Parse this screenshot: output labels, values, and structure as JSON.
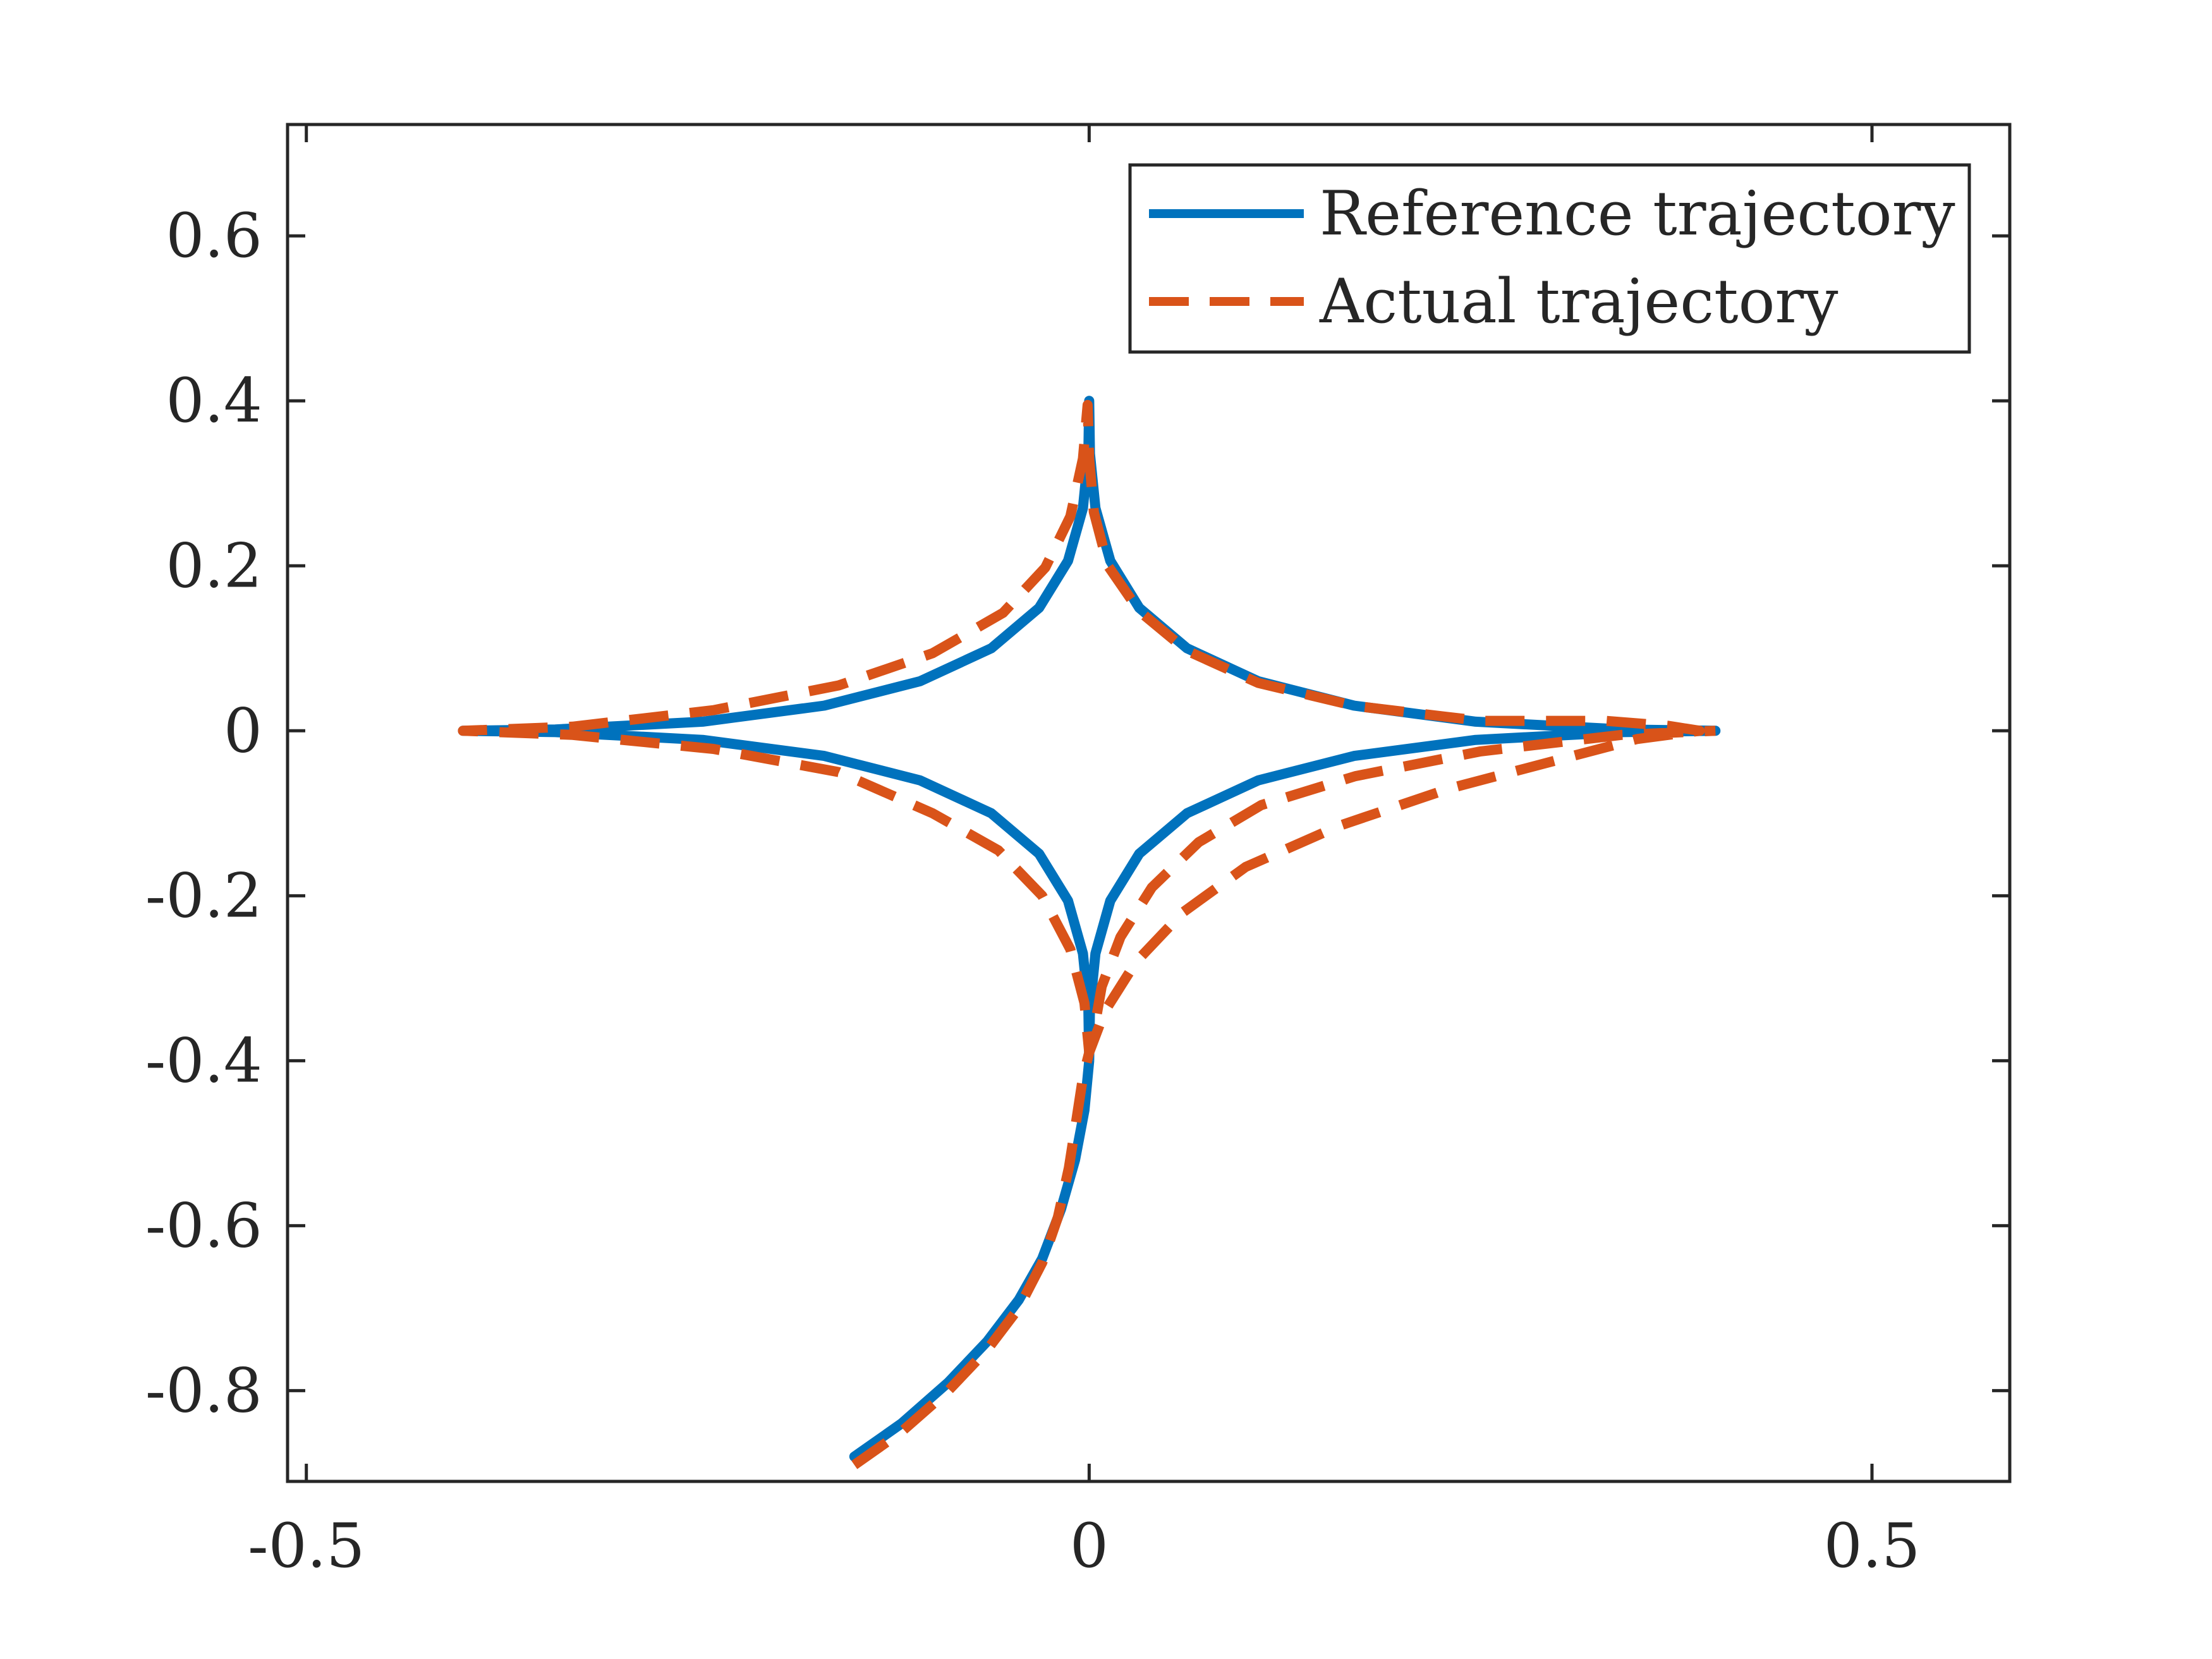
{
  "chart_data": {
    "type": "line",
    "title": "",
    "xlabel": "",
    "ylabel": "",
    "xlim": [
      -0.512,
      0.588
    ],
    "ylim": [
      -0.91,
      0.735
    ],
    "x_ticks": [
      -0.5,
      0,
      0.5
    ],
    "x_tick_labels": [
      "-0.5",
      "0",
      "0.5"
    ],
    "y_ticks": [
      -0.8,
      -0.6,
      -0.4,
      -0.2,
      0,
      0.2,
      0.4,
      0.6
    ],
    "y_tick_labels": [
      "-0.8",
      "-0.6",
      "-0.4",
      "-0.2",
      "0",
      "0.2",
      "0.4",
      "0.6"
    ],
    "grid": false,
    "legend_position": "top-right",
    "series": [
      {
        "name": "Reference trajectory",
        "color": "#0072BD",
        "style": "solid",
        "points": [
          [
            -0.15,
            -0.88
          ],
          [
            -0.12,
            -0.84
          ],
          [
            -0.09,
            -0.79
          ],
          [
            -0.065,
            -0.74
          ],
          [
            -0.045,
            -0.69
          ],
          [
            -0.03,
            -0.64
          ],
          [
            -0.018,
            -0.58
          ],
          [
            -0.009,
            -0.52
          ],
          [
            -0.003,
            -0.46
          ],
          [
            0.0,
            -0.4
          ],
          [
            0.0005,
            -0.336
          ],
          [
            0.004,
            -0.27
          ],
          [
            0.0135,
            -0.206
          ],
          [
            0.032,
            -0.149
          ],
          [
            0.0625,
            -0.1
          ],
          [
            0.108,
            -0.0601
          ],
          [
            0.1692,
            -0.0305
          ],
          [
            0.2469,
            -0.011
          ],
          [
            0.341,
            -0.0016
          ],
          [
            0.4,
            0.0
          ],
          [
            0.341,
            0.0016
          ],
          [
            0.2469,
            0.011
          ],
          [
            0.1692,
            0.0305
          ],
          [
            0.108,
            0.0601
          ],
          [
            0.0625,
            0.1
          ],
          [
            0.032,
            0.149
          ],
          [
            0.0135,
            0.206
          ],
          [
            0.004,
            0.27
          ],
          [
            0.0005,
            0.336
          ],
          [
            0.0,
            0.4
          ],
          [
            -0.0005,
            0.336
          ],
          [
            -0.004,
            0.27
          ],
          [
            -0.0135,
            0.206
          ],
          [
            -0.032,
            0.149
          ],
          [
            -0.0625,
            0.1
          ],
          [
            -0.108,
            0.0601
          ],
          [
            -0.1692,
            0.0305
          ],
          [
            -0.2469,
            0.011
          ],
          [
            -0.341,
            0.0016
          ],
          [
            -0.4,
            0.0
          ],
          [
            -0.341,
            -0.0016
          ],
          [
            -0.2469,
            -0.011
          ],
          [
            -0.1692,
            -0.0305
          ],
          [
            -0.108,
            -0.0601
          ],
          [
            -0.0625,
            -0.1
          ],
          [
            -0.032,
            -0.149
          ],
          [
            -0.0135,
            -0.206
          ],
          [
            -0.004,
            -0.27
          ],
          [
            -0.0005,
            -0.336
          ],
          [
            0.0,
            -0.4
          ],
          [
            0.0005,
            -0.336
          ],
          [
            0.004,
            -0.27
          ],
          [
            0.0135,
            -0.206
          ],
          [
            0.032,
            -0.149
          ],
          [
            0.0625,
            -0.1
          ],
          [
            0.108,
            -0.0601
          ],
          [
            0.1692,
            -0.0305
          ],
          [
            0.2469,
            -0.011
          ],
          [
            0.341,
            -0.0016
          ],
          [
            0.4,
            0.0
          ]
        ]
      },
      {
        "name": "Actual trajectory",
        "color": "#D95319",
        "style": "dashed",
        "points": [
          [
            -0.15,
            -0.89
          ],
          [
            -0.12,
            -0.85
          ],
          [
            -0.09,
            -0.8
          ],
          [
            -0.065,
            -0.75
          ],
          [
            -0.045,
            -0.7
          ],
          [
            -0.03,
            -0.645
          ],
          [
            -0.02,
            -0.59
          ],
          [
            -0.013,
            -0.53
          ],
          [
            -0.008,
            -0.47
          ],
          [
            -0.004,
            -0.42
          ],
          [
            0.0,
            -0.39
          ],
          [
            0.01,
            -0.34
          ],
          [
            0.03,
            -0.28
          ],
          [
            0.06,
            -0.22
          ],
          [
            0.1,
            -0.165
          ],
          [
            0.16,
            -0.115
          ],
          [
            0.23,
            -0.07
          ],
          [
            0.3,
            -0.035
          ],
          [
            0.35,
            -0.01
          ],
          [
            0.39,
            0.0
          ],
          [
            0.37,
            0.006
          ],
          [
            0.33,
            0.012
          ],
          [
            0.25,
            0.012
          ],
          [
            0.17,
            0.03
          ],
          [
            0.108,
            0.058
          ],
          [
            0.0625,
            0.097
          ],
          [
            0.032,
            0.145
          ],
          [
            0.012,
            0.2
          ],
          [
            0.003,
            0.265
          ],
          [
            0.0,
            0.33
          ],
          [
            -0.001,
            0.395
          ],
          [
            -0.004,
            0.33
          ],
          [
            -0.012,
            0.26
          ],
          [
            -0.028,
            0.198
          ],
          [
            -0.055,
            0.143
          ],
          [
            -0.1,
            0.094
          ],
          [
            -0.16,
            0.055
          ],
          [
            -0.24,
            0.025
          ],
          [
            -0.33,
            0.005
          ],
          [
            -0.4,
            0.0
          ],
          [
            -0.33,
            -0.005
          ],
          [
            -0.24,
            -0.022
          ],
          [
            -0.16,
            -0.05
          ],
          [
            -0.1,
            -0.1
          ],
          [
            -0.058,
            -0.145
          ],
          [
            -0.03,
            -0.2
          ],
          [
            -0.012,
            -0.265
          ],
          [
            -0.003,
            -0.33
          ],
          [
            0.0,
            -0.39
          ],
          [
            0.002,
            -0.375
          ],
          [
            0.008,
            -0.31
          ],
          [
            0.02,
            -0.25
          ],
          [
            0.04,
            -0.19
          ],
          [
            0.07,
            -0.135
          ],
          [
            0.11,
            -0.09
          ],
          [
            0.17,
            -0.055
          ],
          [
            0.25,
            -0.025
          ],
          [
            0.34,
            -0.005
          ],
          [
            0.4,
            0.0
          ]
        ]
      }
    ]
  }
}
